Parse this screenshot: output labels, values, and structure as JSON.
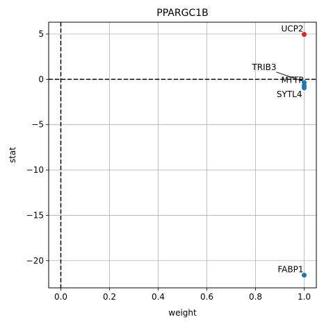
{
  "chart_data": {
    "type": "scatter",
    "title": "PPARGC1B",
    "xlabel": "weight",
    "ylabel": "stat",
    "xlim": [
      -0.05,
      1.05
    ],
    "ylim": [
      -23,
      6.3
    ],
    "xticks": [
      0.0,
      0.2,
      0.4,
      0.6,
      0.8,
      1.0
    ],
    "xtick_labels": [
      "0.0",
      "0.2",
      "0.4",
      "0.6",
      "0.8",
      "1.0"
    ],
    "yticks": [
      5,
      0,
      -5,
      -10,
      -15,
      -20
    ],
    "ytick_labels": [
      "5",
      "0",
      "−5",
      "−10",
      "−15",
      "−20"
    ],
    "grid": true,
    "reference_lines": [
      {
        "orientation": "vertical",
        "value": 0,
        "style": "dashed"
      },
      {
        "orientation": "horizontal",
        "value": 0,
        "style": "dashed"
      }
    ],
    "points": [
      {
        "label": "UCP2",
        "x": 1.0,
        "y": 4.95,
        "color": "#d62728",
        "label_pos": "upper-left",
        "leader": false
      },
      {
        "label": "TRIB3",
        "x": 1.0,
        "y": -0.35,
        "color": "#1f77b4",
        "label_pos": "far-upper-left",
        "leader": true
      },
      {
        "label": "MTTP",
        "x": 1.0,
        "y": -0.7,
        "color": "#1f77b4",
        "label_pos": "upper-left",
        "leader": true
      },
      {
        "label": "SYTL4",
        "x": 1.0,
        "y": -0.95,
        "color": "#1f77b4",
        "label_pos": "lower-left",
        "leader": false
      },
      {
        "label": "FABP1",
        "x": 1.0,
        "y": -21.6,
        "color": "#1f77b4",
        "label_pos": "upper-left",
        "leader": false
      }
    ],
    "colors": {
      "grid": "#b0b0b0",
      "axis": "#000000",
      "up": "#d62728",
      "down": "#1f77b4"
    }
  }
}
